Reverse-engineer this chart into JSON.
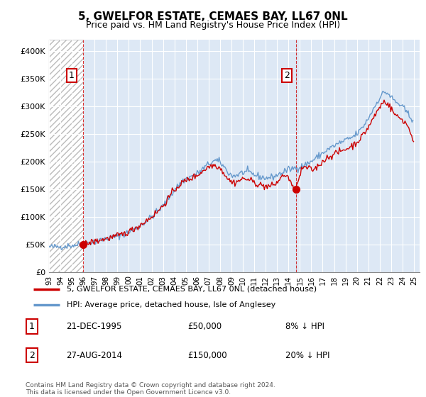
{
  "title": "5, GWELFOR ESTATE, CEMAES BAY, LL67 0NL",
  "subtitle": "Price paid vs. HM Land Registry's House Price Index (HPI)",
  "legend_line1": "5, GWELFOR ESTATE, CEMAES BAY, LL67 0NL (detached house)",
  "legend_line2": "HPI: Average price, detached house, Isle of Anglesey",
  "footnote": "Contains HM Land Registry data © Crown copyright and database right 2024.\nThis data is licensed under the Open Government Licence v3.0.",
  "transaction1_label": "1",
  "transaction1_date": "21-DEC-1995",
  "transaction1_price": "£50,000",
  "transaction1_hpi": "8% ↓ HPI",
  "transaction2_label": "2",
  "transaction2_date": "27-AUG-2014",
  "transaction2_price": "£150,000",
  "transaction2_hpi": "20% ↓ HPI",
  "price_line_color": "#cc0000",
  "hpi_line_color": "#6699cc",
  "plot_bg_color": "#dde8f5",
  "hatch_color": "#bbbbbb",
  "grid_color": "#ffffff",
  "background_color": "#ffffff",
  "ylim": [
    0,
    420000
  ],
  "yticks": [
    0,
    50000,
    100000,
    150000,
    200000,
    250000,
    300000,
    350000,
    400000
  ],
  "ytick_labels": [
    "£0",
    "£50K",
    "£100K",
    "£150K",
    "£200K",
    "£250K",
    "£300K",
    "£350K",
    "£400K"
  ],
  "transaction1_x": 1995.97,
  "transaction1_y": 50000,
  "transaction2_x": 2014.65,
  "transaction2_y": 150000,
  "xmin": 1993,
  "xmax": 2025.5,
  "xticks": [
    1993,
    1994,
    1995,
    1996,
    1997,
    1998,
    1999,
    2000,
    2001,
    2002,
    2003,
    2004,
    2005,
    2006,
    2007,
    2008,
    2009,
    2010,
    2011,
    2012,
    2013,
    2014,
    2015,
    2016,
    2017,
    2018,
    2019,
    2020,
    2021,
    2022,
    2023,
    2024,
    2025
  ]
}
